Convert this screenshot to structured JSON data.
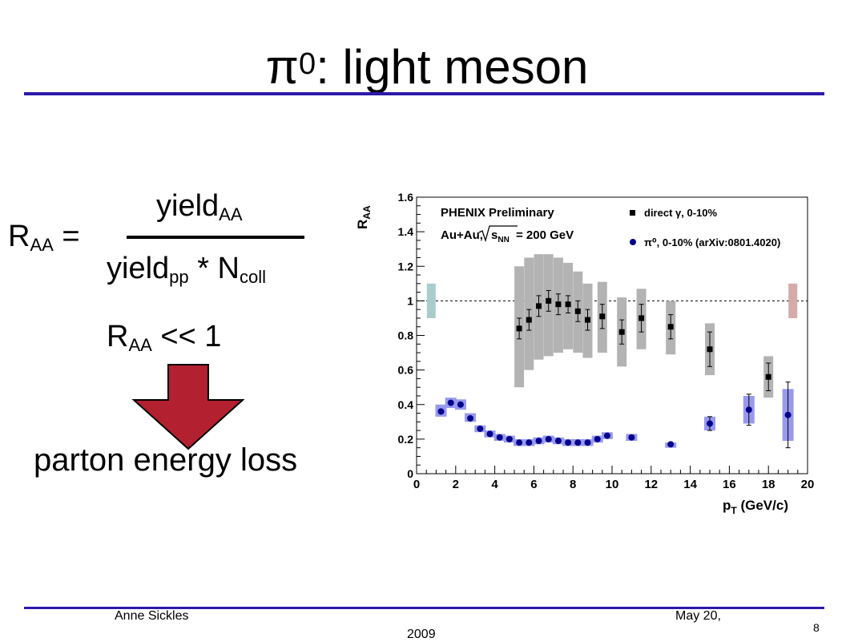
{
  "slide": {
    "title_main": "π",
    "title_sup": "0",
    "title_rest": ": light meson",
    "accent_color": "#2b1aa8"
  },
  "formula": {
    "lhs_main": "R",
    "lhs_sub": "AA",
    "lhs_eq": " =",
    "numerator_main": "yield",
    "numerator_sub": "AA",
    "denominator_main": "yield",
    "denominator_sub": "pp",
    "denominator_mid": " * N",
    "denominator_sub2": "coll",
    "result_main": "R",
    "result_sub": "AA",
    "result_rest": " << 1",
    "arrow_color": "#b32030",
    "conclusion": "parton energy loss"
  },
  "footer": {
    "author": "Anne Sickles",
    "date_line1": "May 20,",
    "date_line2": "2009",
    "page": "8"
  },
  "chart_data": {
    "type": "scatter",
    "title": "PHENIX Preliminary",
    "subtitle_prefix": "Au+Au,",
    "subtitle_suffix": " = 200 GeV",
    "ylabel_main": "R",
    "ylabel_sub": "AA",
    "xlabel_main": "p",
    "xlabel_sub": "T",
    "xlabel_rest": " (GeV/c)",
    "xlim": [
      0,
      20
    ],
    "ylim": [
      0,
      1.6
    ],
    "x_ticks": [
      0,
      2,
      4,
      6,
      8,
      10,
      12,
      14,
      16,
      18,
      20
    ],
    "y_ticks": [
      0,
      0.2,
      0.4,
      0.6,
      0.8,
      1,
      1.2,
      1.4,
      1.6
    ],
    "y_tick_labels": [
      "0",
      "0.2",
      "0.4",
      "0.6",
      "0.8",
      "1",
      "1.2",
      "1.4",
      "1.6"
    ],
    "reference_line": 1,
    "legend": [
      {
        "label": "direct γ, 0-10%",
        "marker": "square",
        "color": "#000000"
      },
      {
        "label": "π⁰, 0-10% (arXiv:0801.4020)",
        "marker": "circle",
        "color": "#00008b"
      }
    ],
    "norm_boxes": [
      {
        "side": "left",
        "x": 0.75,
        "low": 0.9,
        "high": 1.1,
        "color": "#a8cccc"
      },
      {
        "side": "right",
        "x": 19.25,
        "low": 0.9,
        "high": 1.1,
        "color": "#d4aaaa"
      }
    ],
    "series": [
      {
        "name": "direct γ, 0-10%",
        "marker": "square",
        "color": "#000000",
        "sys_color": "#b3b3b3",
        "points": [
          {
            "x": 5.25,
            "y": 0.84,
            "err": 0.06,
            "sys_lo": 0.5,
            "sys_hi": 1.2
          },
          {
            "x": 5.75,
            "y": 0.89,
            "err": 0.06,
            "sys_lo": 0.6,
            "sys_hi": 1.25
          },
          {
            "x": 6.25,
            "y": 0.97,
            "err": 0.06,
            "sys_lo": 0.66,
            "sys_hi": 1.27
          },
          {
            "x": 6.75,
            "y": 1.0,
            "err": 0.06,
            "sys_lo": 0.68,
            "sys_hi": 1.27
          },
          {
            "x": 7.25,
            "y": 0.98,
            "err": 0.06,
            "sys_lo": 0.7,
            "sys_hi": 1.25
          },
          {
            "x": 7.75,
            "y": 0.98,
            "err": 0.05,
            "sys_lo": 0.72,
            "sys_hi": 1.22
          },
          {
            "x": 8.25,
            "y": 0.94,
            "err": 0.06,
            "sys_lo": 0.7,
            "sys_hi": 1.17
          },
          {
            "x": 8.75,
            "y": 0.89,
            "err": 0.06,
            "sys_lo": 0.67,
            "sys_hi": 1.1
          },
          {
            "x": 9.5,
            "y": 0.91,
            "err": 0.07,
            "sys_lo": 0.7,
            "sys_hi": 1.11
          },
          {
            "x": 10.5,
            "y": 0.82,
            "err": 0.07,
            "sys_lo": 0.62,
            "sys_hi": 1.02
          },
          {
            "x": 11.5,
            "y": 0.9,
            "err": 0.08,
            "sys_lo": 0.72,
            "sys_hi": 1.07
          },
          {
            "x": 13.0,
            "y": 0.85,
            "err": 0.07,
            "sys_lo": 0.69,
            "sys_hi": 1.0
          },
          {
            "x": 15.0,
            "y": 0.72,
            "err": 0.1,
            "sys_lo": 0.57,
            "sys_hi": 0.87
          },
          {
            "x": 18.0,
            "y": 0.56,
            "err": 0.08,
            "sys_lo": 0.44,
            "sys_hi": 0.68
          }
        ]
      },
      {
        "name": "π⁰, 0-10% (arXiv:0801.4020)",
        "marker": "circle",
        "color": "#00008b",
        "sys_color": "#9999ee",
        "points": [
          {
            "x": 1.25,
            "y": 0.36,
            "err": 0.0,
            "sys_lo": 0.33,
            "sys_hi": 0.4
          },
          {
            "x": 1.75,
            "y": 0.41,
            "err": 0.0,
            "sys_lo": 0.38,
            "sys_hi": 0.44
          },
          {
            "x": 2.25,
            "y": 0.4,
            "err": 0.0,
            "sys_lo": 0.37,
            "sys_hi": 0.43
          },
          {
            "x": 2.75,
            "y": 0.32,
            "err": 0.0,
            "sys_lo": 0.3,
            "sys_hi": 0.35
          },
          {
            "x": 3.25,
            "y": 0.26,
            "err": 0.0,
            "sys_lo": 0.24,
            "sys_hi": 0.28
          },
          {
            "x": 3.75,
            "y": 0.23,
            "err": 0.0,
            "sys_lo": 0.21,
            "sys_hi": 0.25
          },
          {
            "x": 4.25,
            "y": 0.21,
            "err": 0.0,
            "sys_lo": 0.19,
            "sys_hi": 0.23
          },
          {
            "x": 4.75,
            "y": 0.2,
            "err": 0.0,
            "sys_lo": 0.18,
            "sys_hi": 0.22
          },
          {
            "x": 5.25,
            "y": 0.18,
            "err": 0.0,
            "sys_lo": 0.16,
            "sys_hi": 0.2
          },
          {
            "x": 5.75,
            "y": 0.18,
            "err": 0.0,
            "sys_lo": 0.16,
            "sys_hi": 0.2
          },
          {
            "x": 6.25,
            "y": 0.19,
            "err": 0.0,
            "sys_lo": 0.17,
            "sys_hi": 0.21
          },
          {
            "x": 6.75,
            "y": 0.2,
            "err": 0.0,
            "sys_lo": 0.18,
            "sys_hi": 0.22
          },
          {
            "x": 7.25,
            "y": 0.19,
            "err": 0.0,
            "sys_lo": 0.17,
            "sys_hi": 0.21
          },
          {
            "x": 7.75,
            "y": 0.18,
            "err": 0.0,
            "sys_lo": 0.16,
            "sys_hi": 0.2
          },
          {
            "x": 8.25,
            "y": 0.18,
            "err": 0.0,
            "sys_lo": 0.16,
            "sys_hi": 0.2
          },
          {
            "x": 8.75,
            "y": 0.18,
            "err": 0.0,
            "sys_lo": 0.16,
            "sys_hi": 0.2
          },
          {
            "x": 9.25,
            "y": 0.2,
            "err": 0.0,
            "sys_lo": 0.18,
            "sys_hi": 0.22
          },
          {
            "x": 9.75,
            "y": 0.22,
            "err": 0.0,
            "sys_lo": 0.2,
            "sys_hi": 0.24
          },
          {
            "x": 11.0,
            "y": 0.21,
            "err": 0.0,
            "sys_lo": 0.19,
            "sys_hi": 0.23
          },
          {
            "x": 13.0,
            "y": 0.17,
            "err": 0.0,
            "sys_lo": 0.15,
            "sys_hi": 0.18
          },
          {
            "x": 15.0,
            "y": 0.29,
            "err": 0.04,
            "sys_lo": 0.25,
            "sys_hi": 0.33
          },
          {
            "x": 17.0,
            "y": 0.37,
            "err": 0.09,
            "sys_lo": 0.29,
            "sys_hi": 0.45
          },
          {
            "x": 19.0,
            "y": 0.34,
            "err": 0.19,
            "sys_lo": 0.19,
            "sys_hi": 0.49
          }
        ]
      }
    ]
  }
}
